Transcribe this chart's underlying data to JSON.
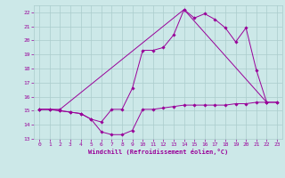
{
  "xlabel": "Windchill (Refroidissement éolien,°C)",
  "ylabel": "",
  "bg_color": "#cce8e8",
  "line_color": "#990099",
  "xlim": [
    -0.5,
    23.5
  ],
  "ylim": [
    13,
    22.5
  ],
  "xticks": [
    0,
    1,
    2,
    3,
    4,
    5,
    6,
    7,
    8,
    9,
    10,
    11,
    12,
    13,
    14,
    15,
    16,
    17,
    18,
    19,
    20,
    21,
    22,
    23
  ],
  "yticks": [
    13,
    14,
    15,
    16,
    17,
    18,
    19,
    20,
    21,
    22
  ],
  "line1_x": [
    0,
    1,
    2,
    3,
    4,
    5,
    6,
    7,
    8,
    9,
    10,
    11,
    12,
    13,
    14,
    15,
    16,
    17,
    18,
    19,
    20,
    21,
    22,
    23
  ],
  "line1_y": [
    15.1,
    15.1,
    15.0,
    14.9,
    14.8,
    14.4,
    13.5,
    13.3,
    13.3,
    13.6,
    15.1,
    15.1,
    15.2,
    15.3,
    15.4,
    15.4,
    15.4,
    15.4,
    15.4,
    15.5,
    15.5,
    15.6,
    15.6,
    15.6
  ],
  "line2_x": [
    0,
    1,
    2,
    3,
    4,
    5,
    6,
    7,
    8,
    9,
    10,
    11,
    12,
    13,
    14,
    15,
    16,
    17,
    18,
    19,
    20,
    21,
    22,
    23
  ],
  "line2_y": [
    15.1,
    15.1,
    15.0,
    14.9,
    14.8,
    14.4,
    14.2,
    15.1,
    15.1,
    16.6,
    19.3,
    19.3,
    19.5,
    20.4,
    22.2,
    21.6,
    21.9,
    21.5,
    20.9,
    19.9,
    20.9,
    17.9,
    15.6,
    15.6
  ],
  "line3_x": [
    0,
    2,
    14,
    22
  ],
  "line3_y": [
    15.1,
    15.1,
    22.2,
    15.6
  ],
  "grid_color": "#aacccc",
  "marker": "D",
  "markersize": 1.8,
  "linewidth": 0.7
}
